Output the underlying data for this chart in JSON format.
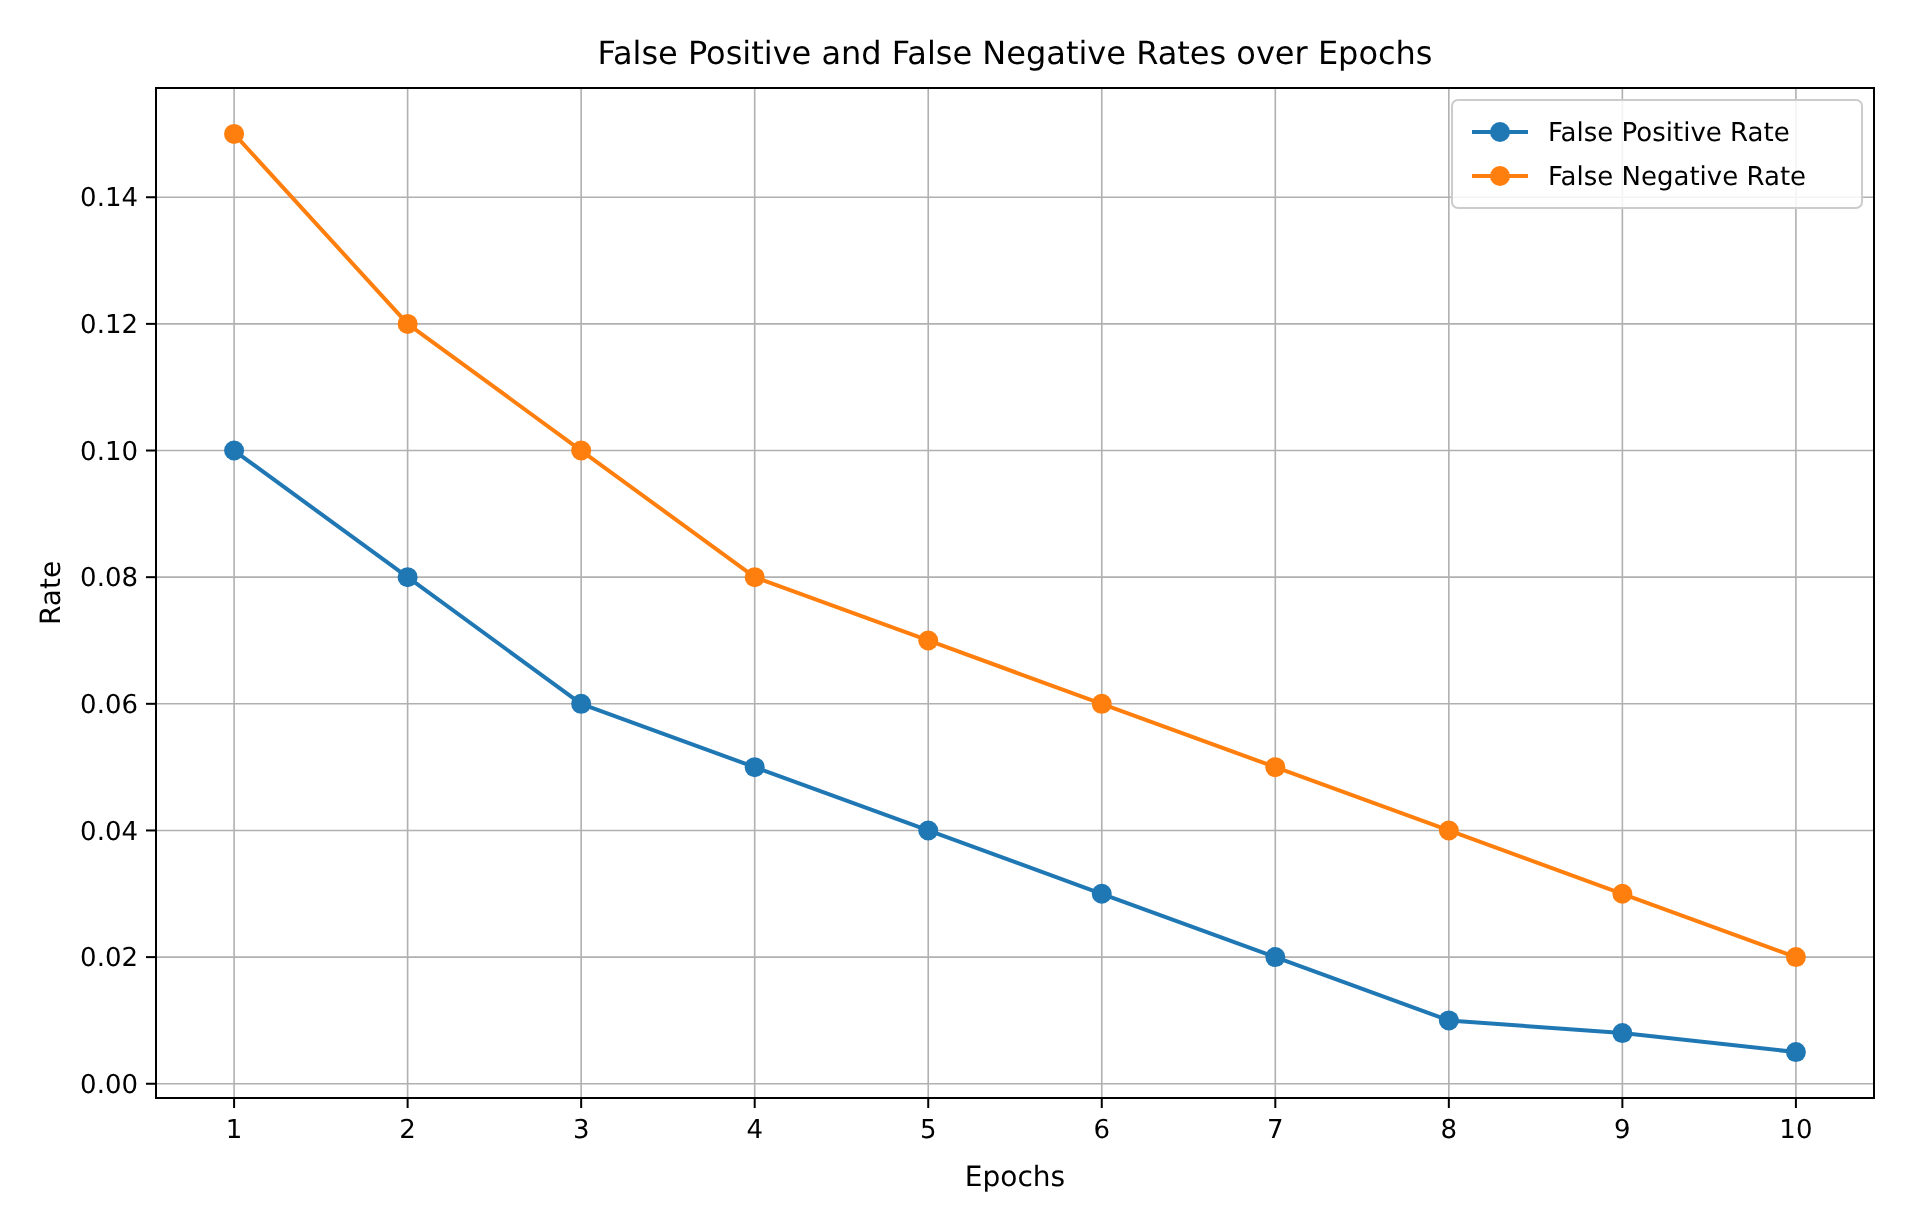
{
  "chart_data": {
    "type": "line",
    "title": "False Positive and False Negative Rates over Epochs",
    "xlabel": "Epochs",
    "ylabel": "Rate",
    "x": [
      1,
      2,
      3,
      4,
      5,
      6,
      7,
      8,
      9,
      10
    ],
    "series": [
      {
        "name": "False Positive Rate",
        "color": "#1f77b4",
        "values": [
          0.1,
          0.08,
          0.06,
          0.05,
          0.04,
          0.03,
          0.02,
          0.01,
          0.008,
          0.005
        ]
      },
      {
        "name": "False Negative Rate",
        "color": "#ff7f0e",
        "values": [
          0.15,
          0.12,
          0.1,
          0.08,
          0.07,
          0.06,
          0.05,
          0.04,
          0.03,
          0.02
        ]
      }
    ],
    "xlim": [
      0.55,
      10.45
    ],
    "xticks": [
      1,
      2,
      3,
      4,
      5,
      6,
      7,
      8,
      9,
      10
    ],
    "ylim": [
      -0.00225,
      0.15725
    ],
    "yticks": [
      {
        "value": 0,
        "label": "0.00"
      },
      {
        "value": 0.02,
        "label": "0.02"
      },
      {
        "value": 0.04,
        "label": "0.04"
      },
      {
        "value": 0.06,
        "label": "0.06"
      },
      {
        "value": 0.08,
        "label": "0.08"
      },
      {
        "value": 0.1,
        "label": "0.10"
      },
      {
        "value": 0.12,
        "label": "0.12"
      },
      {
        "value": 0.14,
        "label": "0.14"
      }
    ],
    "grid": true,
    "legend": "top right",
    "marker": "circle",
    "line_style": "solid"
  }
}
